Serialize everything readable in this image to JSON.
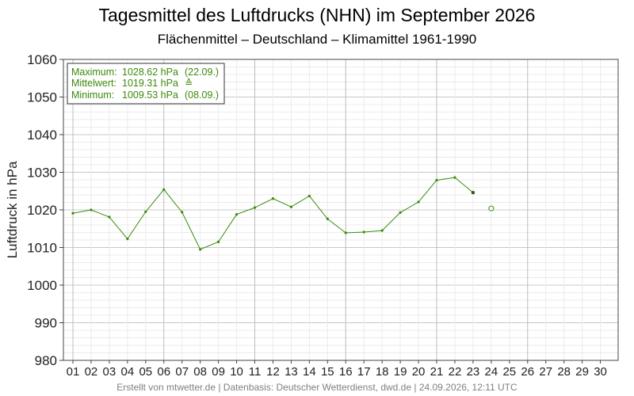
{
  "header": {
    "title": "Tagesmittel des Luftdrucks (NHN) im September 2026",
    "subtitle": "Flächenmittel – Deutschland – Klimamittel 1961-1990"
  },
  "footer": {
    "text": "Erstellt von mtwetter.de | Datenbasis: Deutscher Wetterdienst, dwd.de | 24.09.2026, 12:11 UTC"
  },
  "legend": {
    "lines": [
      {
        "label": "Maximum:",
        "value": "1028.62 hPa",
        "note": "(22.09.)"
      },
      {
        "label": "Mittelwert:",
        "value": "1019.31 hPa",
        "note": "≙"
      },
      {
        "label": "Minimum:",
        "value": "1009.53 hPa",
        "note": "(08.09.)"
      }
    ]
  },
  "colors": {
    "series": "#3a8a0a",
    "grid_major": "#c8c8c8",
    "grid_minor": "#ebebeb"
  },
  "chart_data": {
    "type": "line",
    "title": "Tagesmittel des Luftdrucks (NHN) im September 2026",
    "subtitle": "Flächenmittel – Deutschland – Klimamittel 1961-1990",
    "xlabel": "",
    "ylabel": "Luftdruck in hPa",
    "ylim": [
      980,
      1060
    ],
    "yticks": [
      980,
      990,
      1000,
      1010,
      1020,
      1030,
      1040,
      1050,
      1060
    ],
    "categories": [
      "01",
      "02",
      "03",
      "04",
      "05",
      "06",
      "07",
      "08",
      "09",
      "10",
      "11",
      "12",
      "13",
      "14",
      "15",
      "16",
      "17",
      "18",
      "19",
      "20",
      "21",
      "22",
      "23",
      "24",
      "25",
      "26",
      "27",
      "28",
      "29",
      "30"
    ],
    "grid": true,
    "legend_position": "top-left",
    "series": [
      {
        "values": [
          1019.1,
          1020.0,
          1018.1,
          1012.3,
          1019.5,
          1025.4,
          1019.4,
          1009.5,
          1011.5,
          1018.8,
          1020.6,
          1023.0,
          1020.8,
          1023.7,
          1017.6,
          1013.9,
          1014.1,
          1014.5,
          1019.3,
          1022.1,
          1027.9,
          1028.6,
          1024.6,
          null,
          null,
          null,
          null,
          null,
          null,
          null
        ]
      }
    ],
    "open_marker": {
      "x": "24",
      "y": 1020.4
    }
  }
}
